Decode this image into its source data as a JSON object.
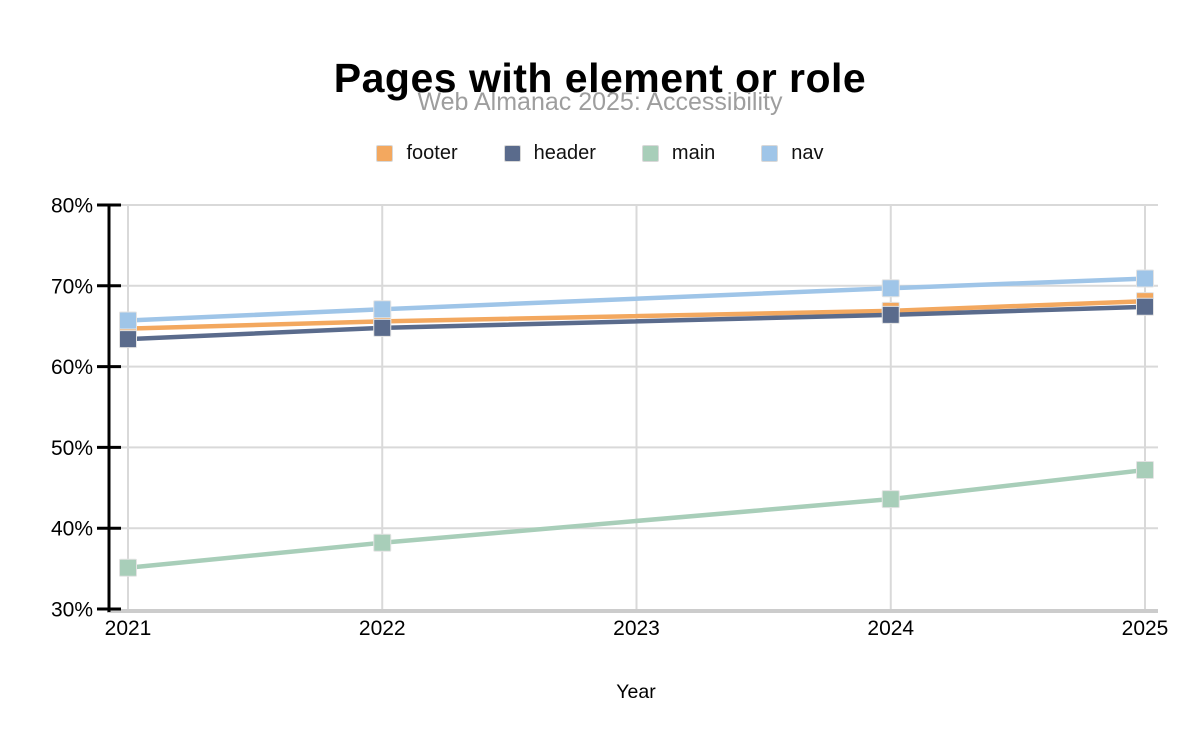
{
  "header": {
    "title": "Pages with element or role",
    "subtitle": "Web Almanac 2025: Accessibility"
  },
  "legend": [
    {
      "label": "footer",
      "color": "#F3A85F"
    },
    {
      "label": "header",
      "color": "#5A6B8C"
    },
    {
      "label": "main",
      "color": "#A8CEB9"
    },
    {
      "label": "nav",
      "color": "#9FC5E8"
    }
  ],
  "chart_data": {
    "type": "line",
    "title": "Pages with element or role",
    "subtitle": "Web Almanac 2025: Accessibility",
    "xlabel": "Year",
    "ylabel": "",
    "x": [
      2021,
      2022,
      2024,
      2025
    ],
    "x_axis_range": [
      2021,
      2025
    ],
    "x_ticks": [
      {
        "value": 2021,
        "label": "2021"
      },
      {
        "value": 2022,
        "label": "2022"
      },
      {
        "value": 2023,
        "label": "2023"
      },
      {
        "value": 2024,
        "label": "2024"
      },
      {
        "value": 2025,
        "label": "2025"
      }
    ],
    "ylim": [
      30,
      80
    ],
    "y_ticks": [
      {
        "value": 80,
        "label": "80%"
      },
      {
        "value": 70,
        "label": "70%"
      },
      {
        "value": 60,
        "label": "60%"
      },
      {
        "value": 50,
        "label": "50%"
      },
      {
        "value": 40,
        "label": "40%"
      },
      {
        "value": 30,
        "label": "30%"
      }
    ],
    "grid": true,
    "legend_position": "top",
    "marker": "square",
    "series": [
      {
        "name": "footer",
        "color": "#F3A85F",
        "values": [
          64.7,
          65.6,
          66.9,
          68.1
        ]
      },
      {
        "name": "header",
        "color": "#5A6B8C",
        "values": [
          63.4,
          64.8,
          66.4,
          67.4
        ]
      },
      {
        "name": "main",
        "color": "#A8CEB9",
        "values": [
          35.1,
          38.2,
          43.6,
          47.2
        ]
      },
      {
        "name": "nav",
        "color": "#9FC5E8",
        "values": [
          65.7,
          67.1,
          69.7,
          70.9
        ]
      }
    ],
    "colors": {
      "gridline": "#D9D9D9",
      "axis_line": "#000000",
      "bottom_axis_line": "#CCCCCC",
      "subtitle_text": "#9E9E9E",
      "tick_text": "#000000"
    }
  }
}
